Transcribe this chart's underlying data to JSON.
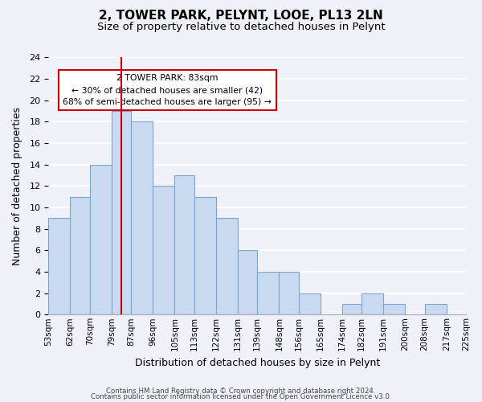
{
  "title": "2, TOWER PARK, PELYNT, LOOE, PL13 2LN",
  "subtitle": "Size of property relative to detached houses in Pelynt",
  "xlabel": "Distribution of detached houses by size in Pelynt",
  "ylabel": "Number of detached properties",
  "bin_edges": [
    53,
    62,
    70,
    79,
    87,
    96,
    105,
    113,
    122,
    131,
    139,
    148,
    156,
    165,
    174,
    182,
    191,
    200,
    208,
    217,
    225
  ],
  "bin_edge_labels": [
    "53sqm",
    "62sqm",
    "70sqm",
    "79sqm",
    "87sqm",
    "96sqm",
    "105sqm",
    "113sqm",
    "122sqm",
    "131sqm",
    "139sqm",
    "148sqm",
    "156sqm",
    "165sqm",
    "174sqm",
    "182sqm",
    "191sqm",
    "200sqm",
    "208sqm",
    "217sqm",
    "225sqm"
  ],
  "bar_heights": [
    9,
    11,
    14,
    19,
    18,
    12,
    13,
    11,
    9,
    6,
    4,
    4,
    2,
    0,
    1,
    2,
    1,
    0,
    1,
    0
  ],
  "bar_color": "#c9d9f0",
  "bar_edge_color": "#7aa6d4",
  "redline_value": 83,
  "annotation_text": "2 TOWER PARK: 83sqm\n← 30% of detached houses are smaller (42)\n68% of semi-detached houses are larger (95) →",
  "annotation_box_color": "white",
  "annotation_box_edge_color": "#cc0000",
  "redline_color": "#cc0000",
  "ylim": [
    0,
    24
  ],
  "yticks": [
    0,
    2,
    4,
    6,
    8,
    10,
    12,
    14,
    16,
    18,
    20,
    22,
    24
  ],
  "footer_line1": "Contains HM Land Registry data © Crown copyright and database right 2024.",
  "footer_line2": "Contains public sector information licensed under the Open Government Licence v3.0.",
  "background_color": "#eef2f8",
  "grid_color": "white",
  "title_fontsize": 11,
  "subtitle_fontsize": 9.5
}
